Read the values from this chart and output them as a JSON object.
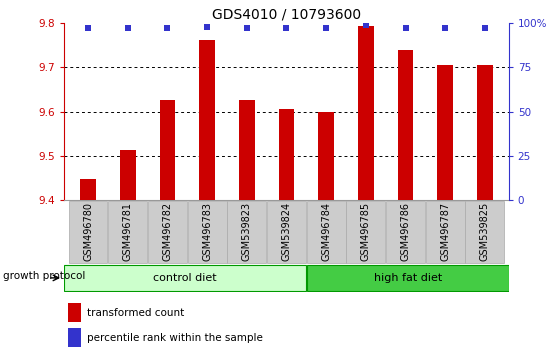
{
  "title": "GDS4010 / 10793600",
  "samples": [
    "GSM496780",
    "GSM496781",
    "GSM496782",
    "GSM496783",
    "GSM539823",
    "GSM539824",
    "GSM496784",
    "GSM496785",
    "GSM496786",
    "GSM496787",
    "GSM539825"
  ],
  "bar_values": [
    9.447,
    9.513,
    9.625,
    9.762,
    9.625,
    9.605,
    9.6,
    9.793,
    9.74,
    9.705,
    9.705
  ],
  "percentile_values": [
    97,
    97,
    97,
    98,
    97,
    97,
    97,
    99,
    97,
    97,
    97
  ],
  "bar_color": "#cc0000",
  "dot_color": "#3333cc",
  "ylim_left": [
    9.4,
    9.8
  ],
  "ylim_right": [
    0,
    100
  ],
  "yticks_left": [
    9.4,
    9.5,
    9.6,
    9.7,
    9.8
  ],
  "yticks_right": [
    0,
    25,
    50,
    75,
    100
  ],
  "ytick_labels_right": [
    "0",
    "25",
    "50",
    "75",
    "100%"
  ],
  "grid_ticks": [
    9.5,
    9.6,
    9.7
  ],
  "num_control": 6,
  "num_highfat": 5,
  "control_color_light": "#ccffcc",
  "control_color_dark": "#44bb44",
  "highfat_color": "#44cc44",
  "box_border": "#009900",
  "xlabel_box_color": "#cccccc",
  "xlabel_box_border": "#aaaaaa",
  "growth_protocol_label": "growth protocol",
  "control_label": "control diet",
  "high_fat_label": "high fat diet",
  "legend_bar_label": "transformed count",
  "legend_dot_label": "percentile rank within the sample",
  "title_fontsize": 10,
  "tick_fontsize": 7.5,
  "label_fontsize": 7,
  "group_fontsize": 8,
  "legend_fontsize": 7.5,
  "bar_width": 0.4
}
